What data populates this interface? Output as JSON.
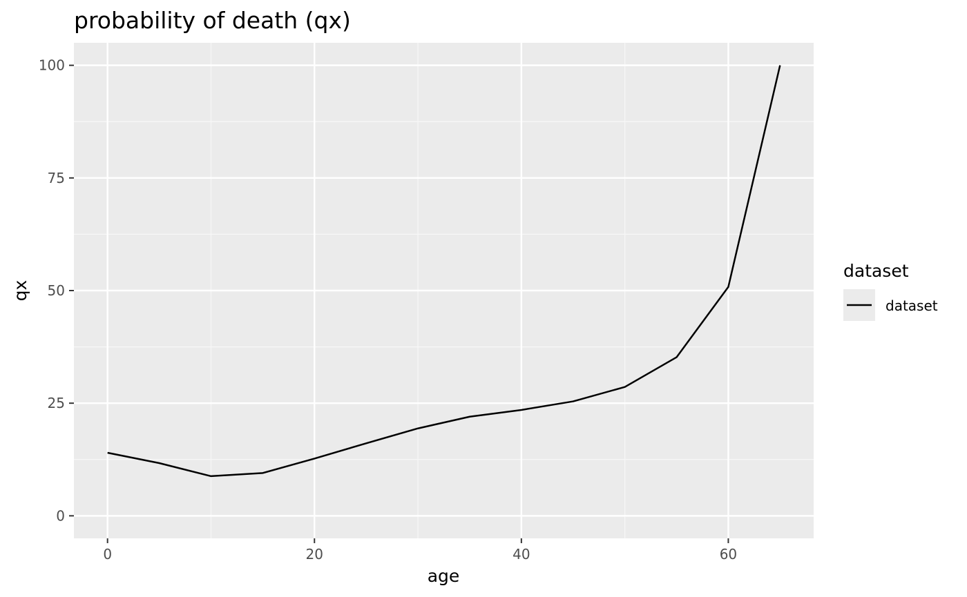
{
  "chart_data": {
    "type": "line",
    "title": "probability of death (qx)",
    "xlabel": "age",
    "ylabel": "qx",
    "xlim": [
      -3.25,
      68.25
    ],
    "ylim": [
      -5,
      105
    ],
    "xticks": [
      0,
      20,
      40,
      60
    ],
    "xtick_labels": [
      "0",
      "20",
      "40",
      "60"
    ],
    "yticks": [
      0,
      25,
      50,
      75,
      100
    ],
    "ytick_labels": [
      "0",
      "25",
      "50",
      "75",
      "100"
    ],
    "grid": true,
    "legend": {
      "title": "dataset",
      "placement": "right",
      "entries": [
        "dataset"
      ]
    },
    "series": [
      {
        "name": "dataset",
        "color": "#000000",
        "x": [
          0,
          5,
          10,
          15,
          20,
          25,
          30,
          35,
          40,
          45,
          50,
          55,
          60,
          65
        ],
        "y": [
          14.0,
          11.7,
          8.8,
          9.5,
          12.7,
          16.1,
          19.4,
          22.0,
          23.5,
          25.4,
          28.6,
          35.2,
          50.8,
          100.0
        ]
      }
    ]
  },
  "colors": {
    "panel_background": "#ebebeb",
    "grid_major": "#ffffff",
    "grid_minor": "#f7f7f7",
    "line": "#000000"
  }
}
